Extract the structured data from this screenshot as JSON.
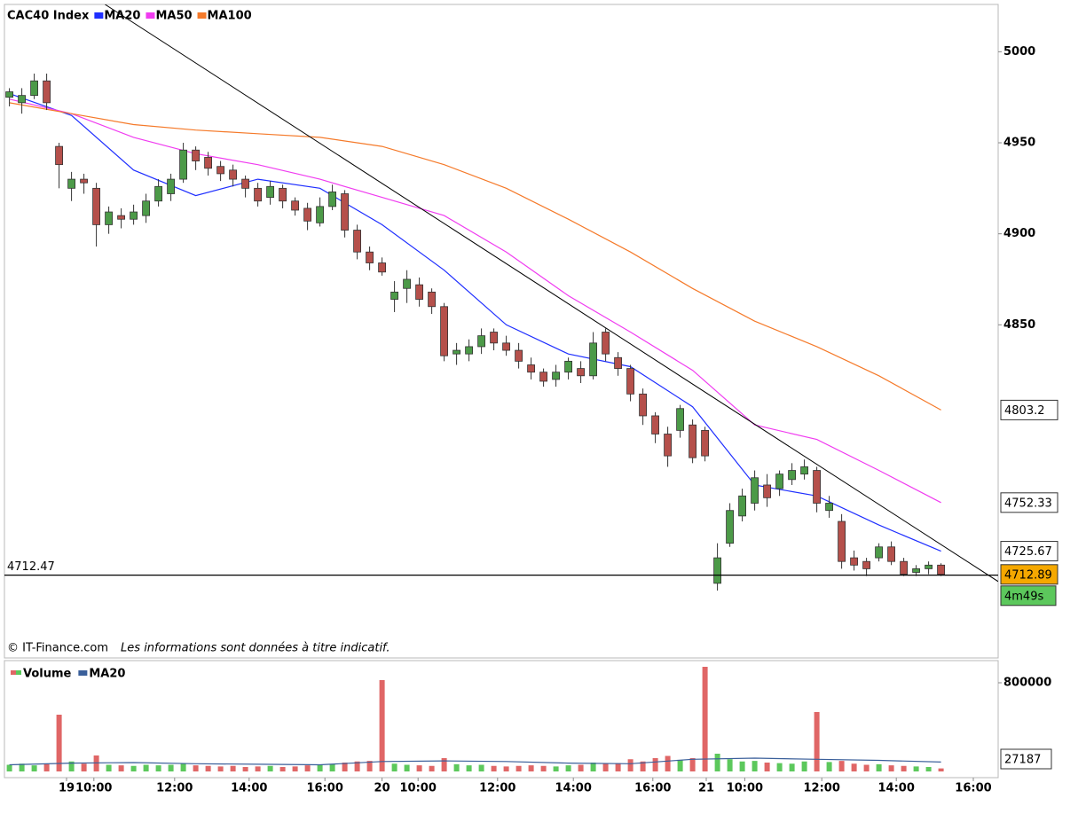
{
  "chart_data": [
    {
      "type": "candlestick",
      "title": "CAC40 Index",
      "xlim": [
        -0.4,
        79.6
      ],
      "ylim": [
        4667,
        5026
      ],
      "yticks": [
        4850,
        4900,
        4950,
        5000
      ],
      "open": [
        4975,
        4972,
        4976,
        4984,
        4948,
        4925,
        4930,
        4925,
        4905,
        4910,
        4908,
        4910,
        4918,
        4922,
        4930,
        4946,
        4942,
        4937,
        4935,
        4930,
        4925,
        4920,
        4925,
        4918,
        4914,
        4906,
        4915,
        4922,
        4902,
        4890,
        4884,
        4864,
        4870,
        4872,
        4868,
        4860,
        4834,
        4834,
        4838,
        4846,
        4840,
        4836,
        4828,
        4824,
        4820,
        4824,
        4826,
        4822,
        4846,
        4832,
        4826,
        4812,
        4800,
        4790,
        4792,
        4795,
        4792,
        4708,
        4730,
        4745,
        4752,
        4762,
        4760,
        4765,
        4768,
        4770,
        4748,
        4742,
        4722,
        4720,
        4722,
        4728,
        4720,
        4714,
        4716,
        4718
      ],
      "high": [
        4980,
        4980,
        4988,
        4988,
        4950,
        4934,
        4933,
        4928,
        4915,
        4914,
        4916,
        4922,
        4930,
        4933,
        4950,
        4948,
        4945,
        4940,
        4938,
        4932,
        4928,
        4929,
        4927,
        4920,
        4917,
        4920,
        4927,
        4924,
        4905,
        4893,
        4887,
        4874,
        4880,
        4876,
        4870,
        4862,
        4840,
        4842,
        4848,
        4848,
        4844,
        4840,
        4832,
        4826,
        4828,
        4832,
        4830,
        4846,
        4848,
        4835,
        4828,
        4815,
        4802,
        4794,
        4806,
        4798,
        4794,
        4730,
        4752,
        4760,
        4770,
        4768,
        4770,
        4774,
        4776,
        4772,
        4756,
        4746,
        4726,
        4722,
        4730,
        4731,
        4722,
        4718,
        4720,
        4719
      ],
      "low": [
        4970,
        4966,
        4974,
        4968,
        4925,
        4918,
        4922,
        4893,
        4900,
        4903,
        4905,
        4906,
        4915,
        4918,
        4928,
        4935,
        4932,
        4929,
        4926,
        4920,
        4915,
        4916,
        4914,
        4910,
        4902,
        4904,
        4913,
        4898,
        4886,
        4880,
        4877,
        4857,
        4862,
        4860,
        4856,
        4830,
        4828,
        4830,
        4834,
        4836,
        4833,
        4826,
        4820,
        4816,
        4816,
        4820,
        4818,
        4820,
        4830,
        4822,
        4808,
        4795,
        4785,
        4772,
        4788,
        4774,
        4775,
        4704,
        4728,
        4742,
        4748,
        4750,
        4756,
        4762,
        4765,
        4747,
        4744,
        4716,
        4715,
        4712,
        4720,
        4718,
        4712,
        4712,
        4713,
        4712
      ],
      "close": [
        4978,
        4976,
        4984,
        4972,
        4938,
        4930,
        4928,
        4905,
        4912,
        4908,
        4912,
        4918,
        4926,
        4930,
        4946,
        4940,
        4936,
        4933,
        4930,
        4925,
        4918,
        4926,
        4918,
        4913,
        4907,
        4915,
        4923,
        4902,
        4890,
        4884,
        4879,
        4868,
        4875,
        4864,
        4860,
        4833,
        4836,
        4838,
        4844,
        4840,
        4836,
        4830,
        4824,
        4819,
        4824,
        4830,
        4822,
        4840,
        4834,
        4826,
        4812,
        4800,
        4790,
        4778,
        4804,
        4777,
        4778,
        4722,
        4748,
        4756,
        4766,
        4755,
        4768,
        4770,
        4772,
        4752,
        4752,
        4720,
        4718,
        4716,
        4728,
        4720,
        4713,
        4716,
        4718,
        4712.89
      ],
      "up_color": "#4c9a48",
      "down_color": "#b5504b",
      "series": [
        {
          "name": "MA20",
          "color": "#1f2fff",
          "x": [
            0,
            5,
            10,
            15,
            20,
            25,
            30,
            35,
            40,
            45,
            50,
            55,
            60,
            65,
            70,
            75
          ],
          "values": [
            4977,
            4965,
            4935,
            4921,
            4930,
            4925,
            4905,
            4880,
            4850,
            4834,
            4827,
            4805,
            4762,
            4756,
            4740,
            4725.67
          ]
        },
        {
          "name": "MA50",
          "color": "#f03cf0",
          "x": [
            0,
            5,
            10,
            15,
            20,
            25,
            30,
            35,
            40,
            45,
            50,
            55,
            60,
            65,
            70,
            75
          ],
          "values": [
            4974,
            4966,
            4953,
            4944,
            4938,
            4930,
            4920,
            4910,
            4890,
            4866,
            4846,
            4825,
            4795,
            4787,
            4770,
            4752.33
          ]
        },
        {
          "name": "MA100",
          "color": "#f57a2a",
          "x": [
            0,
            5,
            10,
            15,
            20,
            25,
            30,
            35,
            40,
            45,
            50,
            55,
            60,
            65,
            70,
            75
          ],
          "values": [
            4972,
            4966,
            4960,
            4957,
            4955,
            4953,
            4948,
            4938,
            4925,
            4908,
            4890,
            4870,
            4852,
            4838,
            4822,
            4803.2
          ]
        }
      ],
      "last_price_color": "#f5a800",
      "trend_line": {
        "x": [
          7.7,
          79.6
        ],
        "values": [
          5026,
          4709
        ],
        "color": "#000000"
      },
      "reference_line": 4712.47,
      "countdown": "4m49s",
      "countdown_color": "#5cc85c",
      "source": "© IT-Finance.com",
      "disclaimer": "Les informations sont données à titre indicatif."
    },
    {
      "type": "bar",
      "title": "Volume",
      "xlim": [
        -0.4,
        79.6
      ],
      "ylim": [
        0,
        1000000
      ],
      "yticks": [
        800000
      ],
      "values": [
        60000,
        70000,
        55000,
        65000,
        512000,
        90000,
        70000,
        144000,
        60000,
        55000,
        50000,
        60000,
        55000,
        60000,
        70000,
        55000,
        50000,
        45000,
        50000,
        40000,
        45000,
        50000,
        40000,
        45000,
        55000,
        60000,
        65000,
        80000,
        90000,
        95000,
        824000,
        70000,
        60000,
        55000,
        50000,
        120000,
        65000,
        55000,
        60000,
        50000,
        45000,
        50000,
        55000,
        50000,
        45000,
        55000,
        60000,
        80000,
        70000,
        75000,
        110000,
        90000,
        120000,
        140000,
        100000,
        120000,
        944000,
        160000,
        110000,
        90000,
        95000,
        80000,
        75000,
        70000,
        90000,
        536000,
        85000,
        95000,
        70000,
        60000,
        65000,
        55000,
        50000,
        45000,
        40000,
        27187
      ],
      "up_color": "#5cc85c",
      "down_color": "#e06666",
      "series": [
        {
          "name": "MA20",
          "color": "#3a5f9a",
          "x": [
            0,
            5,
            10,
            15,
            20,
            25,
            30,
            35,
            40,
            45,
            50,
            55,
            60,
            65,
            70,
            75
          ],
          "values": [
            60000,
            75000,
            80000,
            70000,
            65000,
            60000,
            90000,
            95000,
            90000,
            75000,
            70000,
            110000,
            120000,
            110000,
            100000,
            85000
          ]
        }
      ],
      "xticks": [
        {
          "value": 6.8,
          "label": "10:00"
        },
        {
          "value": 13.3,
          "label": "12:00"
        },
        {
          "value": 19.3,
          "label": "14:00"
        },
        {
          "value": 25.4,
          "label": "16:00"
        },
        {
          "value": 32.9,
          "label": "10:00"
        },
        {
          "value": 39.3,
          "label": "12:00"
        },
        {
          "value": 45.4,
          "label": "14:00"
        },
        {
          "value": 51.8,
          "label": "16:00"
        },
        {
          "value": 59.2,
          "label": "10:00"
        },
        {
          "value": 65.4,
          "label": "12:00"
        },
        {
          "value": 71.4,
          "label": "14:00"
        },
        {
          "value": 77.6,
          "label": "16:00"
        }
      ],
      "day_ticks": [
        {
          "value": 4.6,
          "label": "19"
        },
        {
          "value": 30.0,
          "label": "20"
        },
        {
          "value": 56.1,
          "label": "21"
        }
      ]
    }
  ]
}
